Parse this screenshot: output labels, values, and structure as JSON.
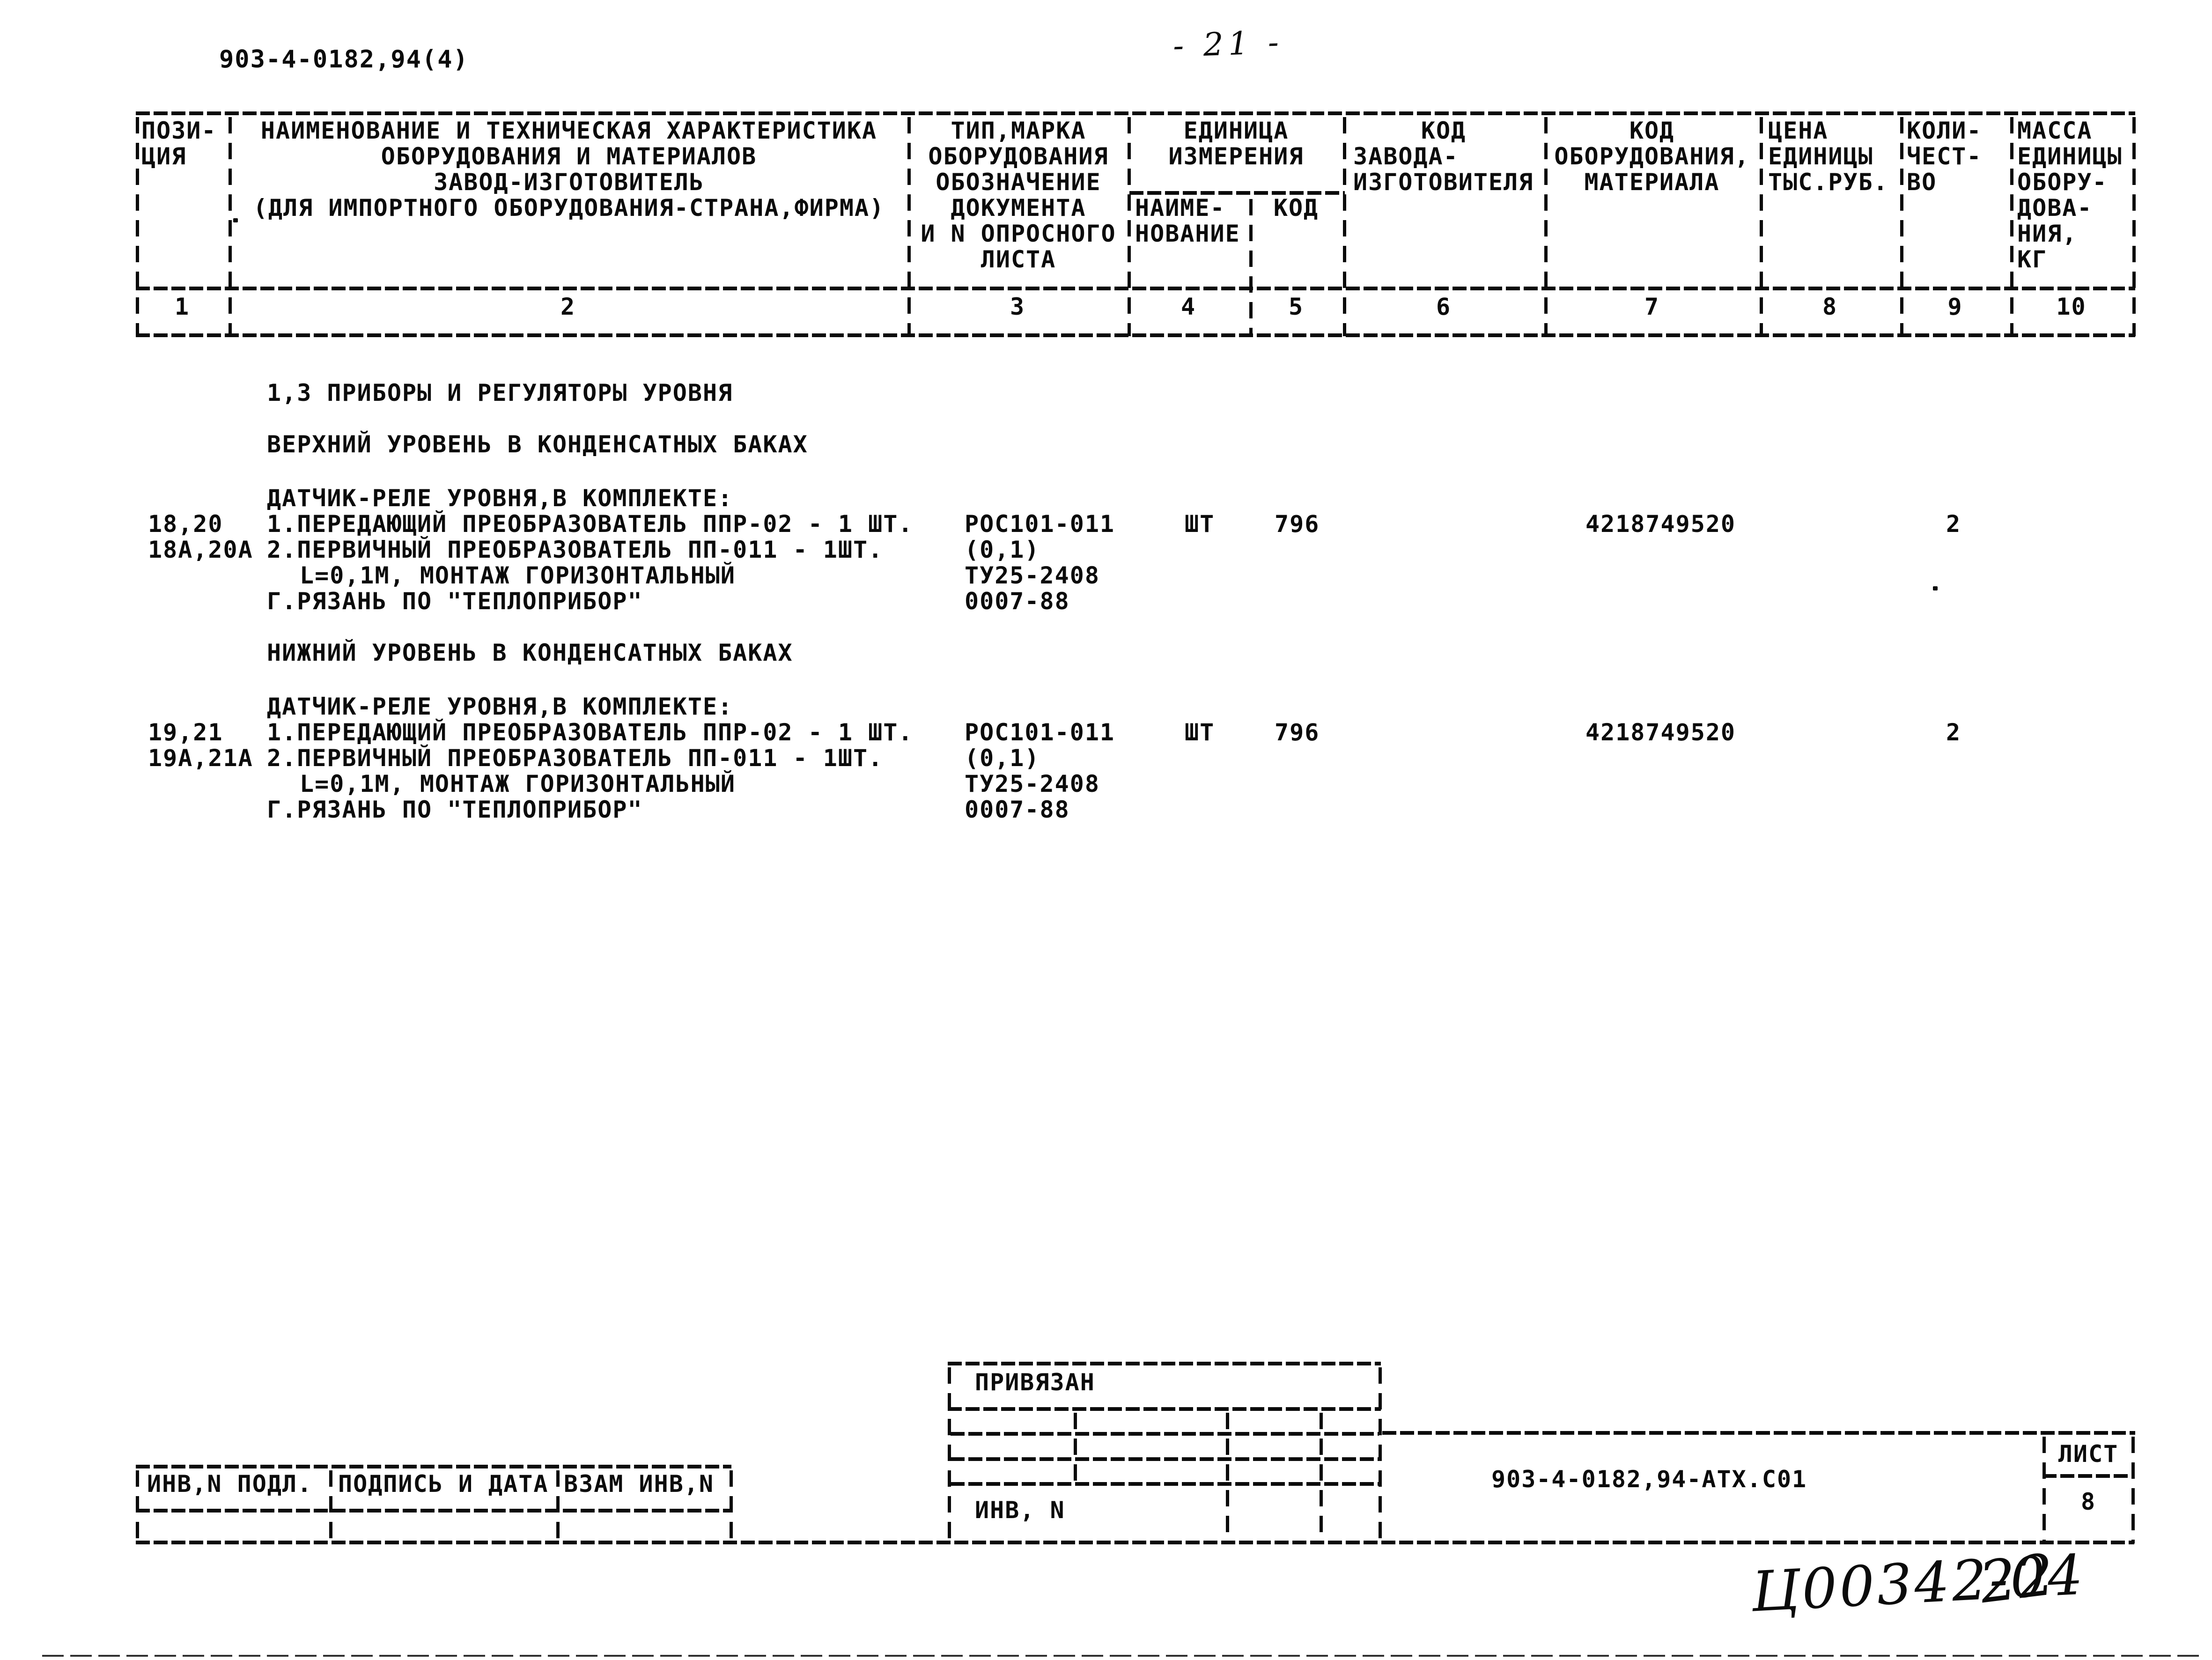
{
  "page": {
    "doc_code": "903-4-0182,94(4)",
    "page_number": "- 21 -"
  },
  "table_header": {
    "col_pos": [
      "ПОЗИ-",
      "ЦИЯ"
    ],
    "col_name": [
      "НАИМЕНОВАНИЕ И ТЕХНИЧЕСКАЯ ХАРАКТЕРИСТИКА",
      "ОБОРУДОВАНИЯ И МАТЕРИАЛОВ",
      "ЗАВОД-ИЗГОТОВИТЕЛЬ",
      "(ДЛЯ ИМПОРТНОГО ОБОРУДОВАНИЯ-СТРАНА,ФИРМА)"
    ],
    "col_type": [
      "ТИП,МАРКА",
      "ОБОРУДОВАНИЯ",
      "ОБОЗНАЧЕНИЕ",
      "ДОКУМЕНТА",
      "И N ОПРОСНОГО",
      "ЛИСТА"
    ],
    "col_unit_group": [
      "ЕДИНИЦА",
      "ИЗМЕРЕНИЯ"
    ],
    "col_unit_name": [
      "НАИМЕ-",
      "НОВАНИЕ"
    ],
    "col_unit_code": "КОД",
    "col_plant_code_top": "КОД",
    "col_plant_code_rest": [
      "ЗАВОДА-",
      "ИЗГОТОВИТЕЛЯ"
    ],
    "col_equip_code": [
      "КОД",
      "ОБОРУДОВАНИЯ,",
      "МАТЕРИАЛА"
    ],
    "col_price": [
      "ЦЕНА",
      "ЕДИНИЦЫ",
      "ТЫС.РУБ."
    ],
    "col_qty": [
      "КОЛИ-",
      "ЧЕСТ-",
      "ВО"
    ],
    "col_mass": [
      "МАССА",
      "ЕДИНИЦЫ",
      "ОБОРУ-",
      "ДОВА-",
      "НИЯ,",
      "КГ"
    ],
    "numbers": [
      "1",
      "2",
      "3",
      "4",
      "5",
      "6",
      "7",
      "8",
      "9",
      "10"
    ]
  },
  "body": {
    "section_heading": "1,3 ПРИБОРЫ И РЕГУЛЯТОРЫ УРОВНЯ",
    "subsection_upper": "ВЕРХНИЙ УРОВЕНЬ В КОНДЕНСАТНЫХ БАКАХ",
    "subsection_lower": "НИЖНИЙ УРОВЕНЬ В КОНДЕНСАТНЫХ БАКАХ",
    "item_upper": {
      "pos_1": "18,20",
      "pos_2": "18А,20А",
      "name_1": "ДАТЧИК-РЕЛЕ УРОВНЯ,В КОМПЛЕКТЕ:",
      "name_2": "1.ПЕРЕДАЮЩИЙ ПРЕОБРАЗОВАТЕЛЬ ППР-02 - 1 ШТ.",
      "name_3": "2.ПЕРВИЧНЫЙ ПРЕОБРАЗОВАТЕЛЬ ПП-011 - 1ШТ.",
      "name_4": "L=0,1М, МОНТАЖ ГОРИЗОНТАЛЬНЫЙ",
      "name_5": "Г.РЯЗАНЬ ПО \"ТЕПЛОПРИБОР\"",
      "type_1": "РОС101-011",
      "type_2": "(0,1)",
      "type_3": "ТУ25-2408",
      "type_4": "0007-88",
      "unit_name": "ШТ",
      "unit_code": "796",
      "equip_code": "4218749520",
      "quantity": "2"
    },
    "item_lower": {
      "pos_1": "19,21",
      "pos_2": "19А,21А",
      "name_1": "ДАТЧИК-РЕЛЕ УРОВНЯ,В КОМПЛЕКТЕ:",
      "name_2": "1.ПЕРЕДАЮЩИЙ ПРЕОБРАЗОВАТЕЛЬ ППР-02 - 1 ШТ.",
      "name_3": "2.ПЕРВИЧНЫЙ ПРЕОБРАЗОВАТЕЛЬ ПП-011 - 1ШТ.",
      "name_4": "L=0,1М, МОНТАЖ ГОРИЗОНТАЛЬНЫЙ",
      "name_5": "Г.РЯЗАНЬ ПО \"ТЕПЛОПРИБОР\"",
      "type_1": "РОС101-011",
      "type_2": "(0,1)",
      "type_3": "ТУ25-2408",
      "type_4": "0007-88",
      "unit_name": "ШТ",
      "unit_code": "796",
      "equip_code": "4218749520",
      "quantity": "2"
    }
  },
  "footer": {
    "left_stamp": {
      "cell_1": "ИНВ,N ПОДЛ.",
      "cell_2": "ПОДПИСЬ И ДАТА",
      "cell_3": "ВЗАМ ИНВ,N"
    },
    "binding_stamp": {
      "title": "ПРИВЯЗАН",
      "inv_label": "ИНВ, N"
    },
    "doc_number": "903-4-0182,94-АТХ.С01",
    "sheet_box": {
      "label": "ЛИСТ",
      "value": "8"
    },
    "handwritten_code": "Ц00342-04",
    "handwritten_number": "22"
  }
}
